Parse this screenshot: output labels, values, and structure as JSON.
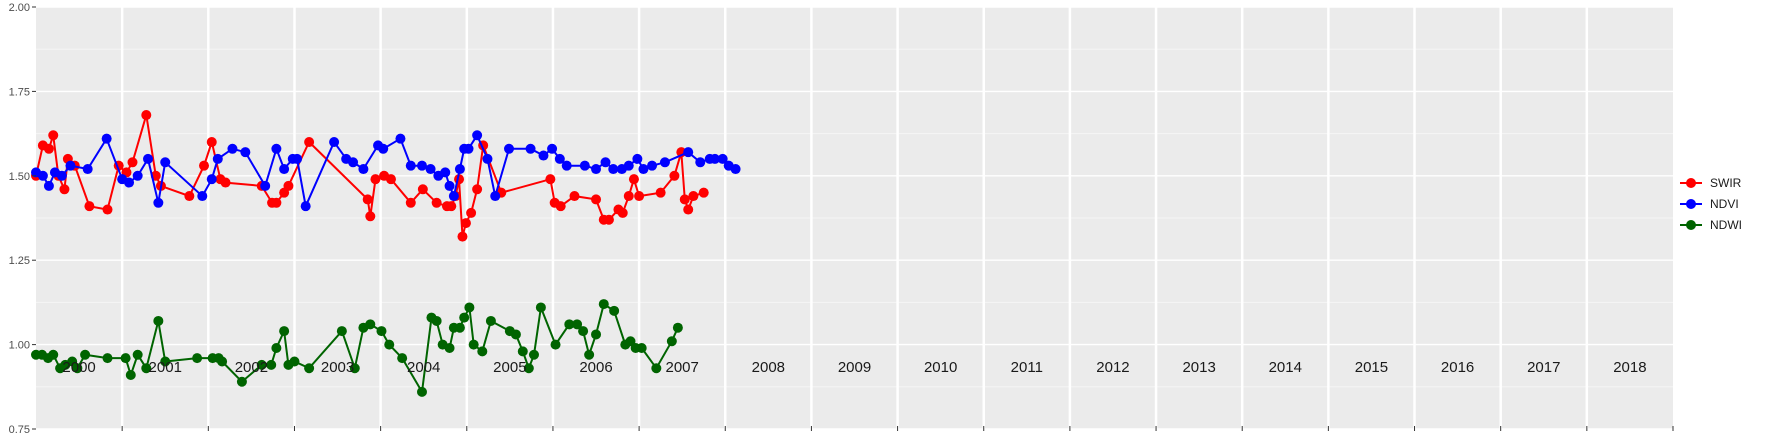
{
  "chart_data": {
    "type": "line",
    "title": "",
    "xlabel": "",
    "ylabel": "",
    "ylim": [
      0.75,
      2.0
    ],
    "xlim": [
      2000.0,
      2019.0
    ],
    "yticks": [
      0.75,
      1.0,
      1.25,
      1.5,
      1.75,
      2.0
    ],
    "ytick_labels": [
      "0.75",
      "1.00",
      "1.25",
      "1.50",
      "1.75",
      "2.00"
    ],
    "grid": true,
    "legend_position": "right",
    "year_labels": [
      "2000",
      "2001",
      "2002",
      "2003",
      "2004",
      "2005",
      "2006",
      "2007",
      "2008",
      "2009",
      "2010",
      "2011",
      "2012",
      "2013",
      "2014",
      "2015",
      "2016",
      "2017",
      "2018"
    ],
    "series": [
      {
        "name": "SWIR",
        "color": "#ff0000",
        "x": [
          2000.0,
          2000.08,
          2000.15,
          2000.2,
          2000.26,
          2000.33,
          2000.37,
          2000.45,
          2000.62,
          2000.83,
          2000.96,
          2001.05,
          2001.12,
          2001.28,
          2001.39,
          2001.45,
          2001.78,
          2001.95,
          2002.04,
          2002.14,
          2002.2,
          2002.62,
          2002.74,
          2002.79,
          2002.88,
          2002.93,
          2003.17,
          2003.85,
          2003.88,
          2003.94,
          2004.04,
          2004.12,
          2004.35,
          2004.49,
          2004.65,
          2004.77,
          2004.82,
          2004.87,
          2004.91,
          2004.95,
          2004.99,
          2005.05,
          2005.12,
          2005.19,
          2005.4,
          2005.97,
          2006.02,
          2006.09,
          2006.25,
          2006.5,
          2006.59,
          2006.65,
          2006.76,
          2006.81,
          2006.88,
          2006.94,
          2007.0,
          2007.25,
          2007.41,
          2007.49,
          2007.53,
          2007.57,
          2007.63,
          2007.75
        ],
        "y": [
          1.5,
          1.59,
          1.58,
          1.62,
          1.5,
          1.46,
          1.55,
          1.53,
          1.41,
          1.4,
          1.53,
          1.51,
          1.54,
          1.68,
          1.5,
          1.47,
          1.44,
          1.53,
          1.6,
          1.49,
          1.48,
          1.47,
          1.42,
          1.42,
          1.45,
          1.47,
          1.6,
          1.43,
          1.38,
          1.49,
          1.5,
          1.49,
          1.42,
          1.46,
          1.42,
          1.41,
          1.41,
          1.44,
          1.49,
          1.32,
          1.36,
          1.39,
          1.46,
          1.59,
          1.45,
          1.49,
          1.42,
          1.41,
          1.44,
          1.43,
          1.37,
          1.37,
          1.4,
          1.39,
          1.44,
          1.49,
          1.44,
          1.45,
          1.5,
          1.57,
          1.43,
          1.4,
          1.44,
          1.45
        ],
        "group": "a"
      },
      {
        "name": "NDVI",
        "color": "#0000ff",
        "x": [
          2000.0,
          2000.08,
          2000.15,
          2000.22,
          2000.3,
          2000.4,
          2000.6,
          2000.82,
          2001.0,
          2001.08,
          2001.18,
          2001.3,
          2001.42,
          2001.5,
          2001.93,
          2002.04,
          2002.11,
          2002.28,
          2002.43,
          2002.66,
          2002.79,
          2002.88,
          2002.98,
          2003.03,
          2003.13,
          2003.46,
          2003.6,
          2003.68,
          2003.8,
          2003.97,
          2004.03,
          2004.23,
          2004.35,
          2004.48,
          2004.58,
          2004.67,
          2004.75,
          2004.8,
          2004.85,
          2004.92,
          2004.97,
          2005.02,
          2005.12,
          2005.24,
          2005.33,
          2005.49,
          2005.74,
          2005.89,
          2005.99,
          2006.08,
          2006.16,
          2006.37,
          2006.5,
          2006.61,
          2006.7,
          2006.8,
          2006.88,
          2006.98,
          2007.05,
          2007.15,
          2007.3,
          2007.57,
          2007.71,
          2007.82,
          2007.88,
          2007.97,
          2008.04,
          2008.12
        ],
        "y": [
          1.51,
          1.5,
          1.47,
          1.51,
          1.5,
          1.53,
          1.52,
          1.61,
          1.49,
          1.48,
          1.5,
          1.55,
          1.42,
          1.54,
          1.44,
          1.49,
          1.55,
          1.58,
          1.57,
          1.47,
          1.58,
          1.52,
          1.55,
          1.55,
          1.41,
          1.6,
          1.55,
          1.54,
          1.52,
          1.59,
          1.58,
          1.61,
          1.53,
          1.53,
          1.52,
          1.5,
          1.51,
          1.47,
          1.44,
          1.52,
          1.58,
          1.58,
          1.62,
          1.55,
          1.44,
          1.58,
          1.58,
          1.56,
          1.58,
          1.55,
          1.53,
          1.53,
          1.52,
          1.54,
          1.52,
          1.52,
          1.53,
          1.55,
          1.52,
          1.53,
          1.54,
          1.57,
          1.54,
          1.55,
          1.55,
          1.55,
          1.53,
          1.52
        ],
        "group": "a"
      },
      {
        "name": "NDWI",
        "color": "#006400",
        "x": [
          2000.0,
          2000.07,
          2000.14,
          2000.2,
          2000.28,
          2000.34,
          2000.42,
          2000.48,
          2000.57,
          2000.83,
          2001.04,
          2001.1,
          2001.18,
          2001.28,
          2001.42,
          2001.5,
          2001.87,
          2002.05,
          2002.12,
          2002.16,
          2002.39,
          2002.62,
          2002.73,
          2002.79,
          2002.88,
          2002.93,
          2003.0,
          2003.17,
          2003.55,
          2003.7,
          2003.8,
          2003.88,
          2004.01,
          2004.1,
          2004.25,
          2004.48,
          2004.59,
          2004.65,
          2004.72,
          2004.8,
          2004.85,
          2004.92,
          2004.97,
          2005.03,
          2005.08,
          2005.18,
          2005.28,
          2005.5,
          2005.57,
          2005.65,
          2005.72,
          2005.78,
          2005.86,
          2006.03,
          2006.19,
          2006.28,
          2006.35,
          2006.42,
          2006.5,
          2006.59,
          2006.71,
          2006.84,
          2006.9,
          2006.96,
          2007.03,
          2007.2,
          2007.38,
          2007.45
        ],
        "y": [
          0.97,
          0.97,
          0.96,
          0.97,
          0.93,
          0.94,
          0.95,
          0.93,
          0.97,
          0.96,
          0.96,
          0.91,
          0.97,
          0.93,
          1.07,
          0.95,
          0.96,
          0.96,
          0.96,
          0.95,
          0.89,
          0.94,
          0.94,
          0.99,
          1.04,
          0.94,
          0.95,
          0.93,
          1.04,
          0.93,
          1.05,
          1.06,
          1.04,
          1.0,
          0.96,
          0.86,
          1.08,
          1.07,
          1.0,
          0.99,
          1.05,
          1.05,
          1.08,
          1.11,
          1.0,
          0.98,
          1.07,
          1.04,
          1.03,
          0.98,
          0.93,
          0.97,
          1.11,
          1.0,
          1.06,
          1.06,
          1.04,
          0.97,
          1.03,
          1.12,
          1.1,
          1.0,
          1.01,
          0.99,
          0.99,
          0.93,
          1.01,
          1.05
        ],
        "group": "a"
      }
    ]
  }
}
